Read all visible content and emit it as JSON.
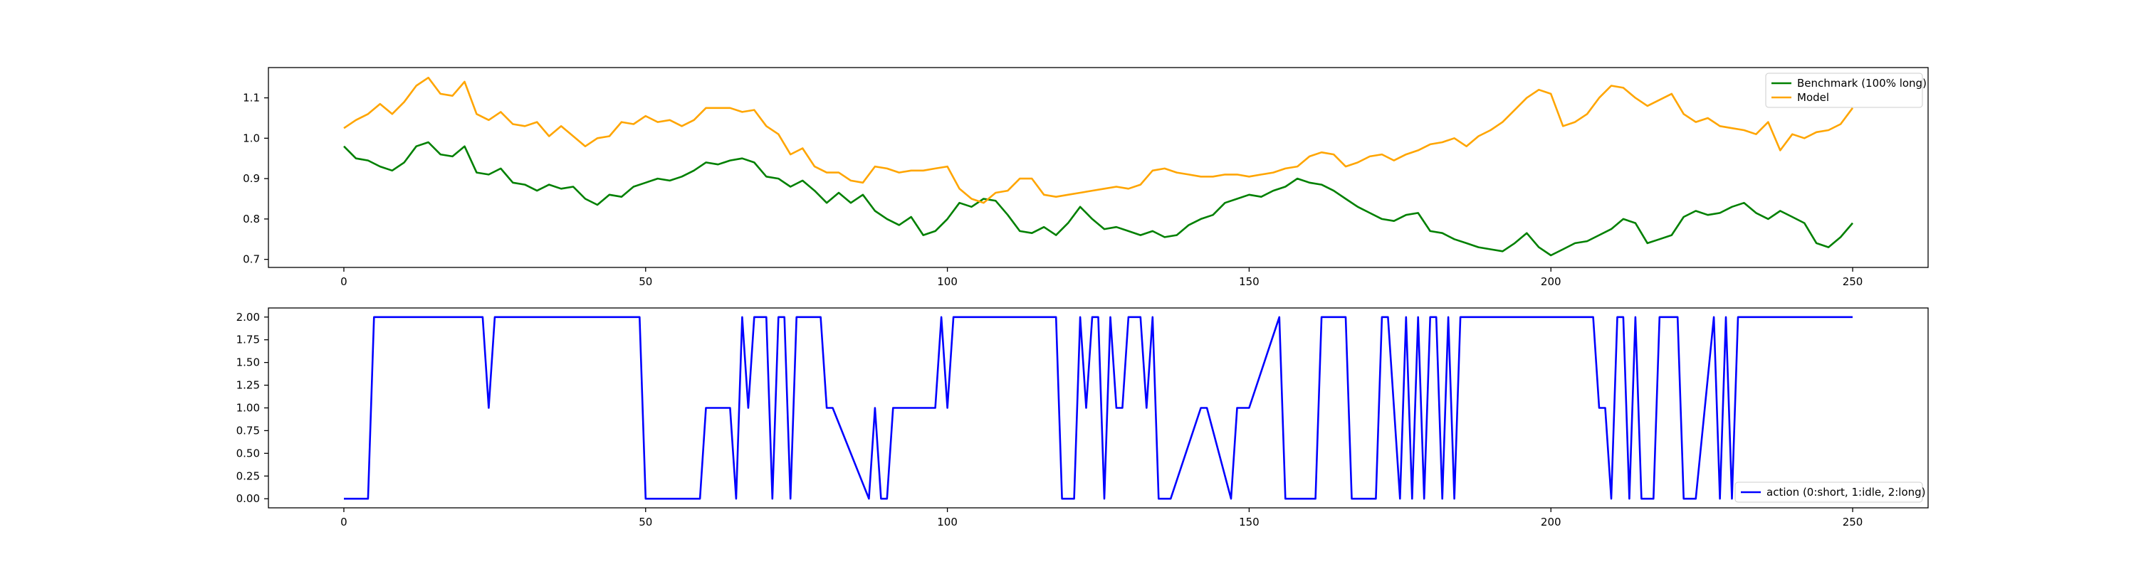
{
  "chart_data": [
    {
      "type": "line",
      "title": "",
      "xlabel": "",
      "ylabel": "",
      "xlim": [
        -12.5,
        262.5
      ],
      "ylim": [
        0.68,
        1.175
      ],
      "xticks": [
        0,
        50,
        100,
        150,
        200,
        250
      ],
      "xtick_labels": [
        "0",
        "50",
        "100",
        "150",
        "200",
        "250"
      ],
      "yticks": [
        0.7,
        0.8,
        0.9,
        1.0,
        1.1
      ],
      "ytick_labels": [
        "0.7",
        "0.8",
        "0.9",
        "1.0",
        "1.1"
      ],
      "grid": false,
      "legend_position": "top-right",
      "series": [
        {
          "name": "Benchmark (100% long)",
          "color": "#008000",
          "x": [
            0,
            2,
            4,
            6,
            8,
            10,
            12,
            14,
            16,
            18,
            20,
            22,
            24,
            26,
            28,
            30,
            32,
            34,
            36,
            38,
            40,
            42,
            44,
            46,
            48,
            50,
            52,
            54,
            56,
            58,
            60,
            62,
            64,
            66,
            68,
            70,
            72,
            74,
            76,
            78,
            80,
            82,
            84,
            86,
            88,
            90,
            92,
            94,
            96,
            98,
            100,
            102,
            104,
            106,
            108,
            110,
            112,
            114,
            116,
            118,
            120,
            122,
            124,
            126,
            128,
            130,
            132,
            134,
            136,
            138,
            140,
            142,
            144,
            146,
            148,
            150,
            152,
            154,
            156,
            158,
            160,
            162,
            164,
            166,
            168,
            170,
            172,
            174,
            176,
            178,
            180,
            182,
            184,
            186,
            188,
            190,
            192,
            194,
            196,
            198,
            200,
            202,
            204,
            206,
            208,
            210,
            212,
            214,
            216,
            218,
            220,
            222,
            224,
            226,
            228,
            230,
            232,
            234,
            236,
            238,
            240,
            242,
            244,
            246,
            248,
            250
          ],
          "values": [
            0.98,
            0.95,
            0.945,
            0.93,
            0.92,
            0.94,
            0.98,
            0.99,
            0.96,
            0.955,
            0.98,
            0.915,
            0.91,
            0.925,
            0.89,
            0.885,
            0.87,
            0.885,
            0.875,
            0.88,
            0.85,
            0.835,
            0.86,
            0.855,
            0.88,
            0.89,
            0.9,
            0.895,
            0.905,
            0.92,
            0.94,
            0.935,
            0.945,
            0.95,
            0.94,
            0.905,
            0.9,
            0.88,
            0.895,
            0.87,
            0.84,
            0.865,
            0.84,
            0.86,
            0.82,
            0.8,
            0.785,
            0.805,
            0.76,
            0.77,
            0.8,
            0.84,
            0.83,
            0.85,
            0.845,
            0.81,
            0.77,
            0.765,
            0.78,
            0.76,
            0.79,
            0.83,
            0.8,
            0.775,
            0.78,
            0.77,
            0.76,
            0.77,
            0.755,
            0.76,
            0.785,
            0.8,
            0.81,
            0.84,
            0.85,
            0.86,
            0.855,
            0.87,
            0.88,
            0.9,
            0.89,
            0.885,
            0.87,
            0.85,
            0.83,
            0.815,
            0.8,
            0.795,
            0.81,
            0.815,
            0.77,
            0.765,
            0.75,
            0.74,
            0.73,
            0.725,
            0.72,
            0.74,
            0.765,
            0.73,
            0.71,
            0.725,
            0.74,
            0.745,
            0.76,
            0.775,
            0.8,
            0.79,
            0.74,
            0.75,
            0.76,
            0.805,
            0.82,
            0.81,
            0.815,
            0.83,
            0.84,
            0.815,
            0.8,
            0.82,
            0.805,
            0.79,
            0.74,
            0.73,
            0.755,
            0.79
          ]
        },
        {
          "name": "Model",
          "color": "#ffa500",
          "x": [
            0,
            2,
            4,
            6,
            8,
            10,
            12,
            14,
            16,
            18,
            20,
            22,
            24,
            26,
            28,
            30,
            32,
            34,
            36,
            38,
            40,
            42,
            44,
            46,
            48,
            50,
            52,
            54,
            56,
            58,
            60,
            62,
            64,
            66,
            68,
            70,
            72,
            74,
            76,
            78,
            80,
            82,
            84,
            86,
            88,
            90,
            92,
            94,
            96,
            98,
            100,
            102,
            104,
            106,
            108,
            110,
            112,
            114,
            116,
            118,
            120,
            122,
            124,
            126,
            128,
            130,
            132,
            134,
            136,
            138,
            140,
            142,
            144,
            146,
            148,
            150,
            152,
            154,
            156,
            158,
            160,
            162,
            164,
            166,
            168,
            170,
            172,
            174,
            176,
            178,
            180,
            182,
            184,
            186,
            188,
            190,
            192,
            194,
            196,
            198,
            200,
            202,
            204,
            206,
            208,
            210,
            212,
            214,
            216,
            218,
            220,
            222,
            224,
            226,
            228,
            230,
            232,
            234,
            236,
            238,
            240,
            242,
            244,
            246,
            248,
            250
          ],
          "values": [
            1.025,
            1.045,
            1.06,
            1.085,
            1.06,
            1.09,
            1.13,
            1.15,
            1.11,
            1.105,
            1.14,
            1.06,
            1.045,
            1.065,
            1.035,
            1.03,
            1.04,
            1.005,
            1.03,
            1.005,
            0.98,
            1.0,
            1.005,
            1.04,
            1.035,
            1.055,
            1.04,
            1.045,
            1.03,
            1.045,
            1.075,
            1.075,
            1.075,
            1.065,
            1.07,
            1.03,
            1.01,
            0.96,
            0.975,
            0.93,
            0.915,
            0.915,
            0.895,
            0.89,
            0.93,
            0.925,
            0.915,
            0.92,
            0.92,
            0.925,
            0.93,
            0.875,
            0.85,
            0.84,
            0.865,
            0.87,
            0.9,
            0.9,
            0.86,
            0.855,
            0.86,
            0.865,
            0.87,
            0.875,
            0.88,
            0.875,
            0.885,
            0.92,
            0.925,
            0.915,
            0.91,
            0.905,
            0.905,
            0.91,
            0.91,
            0.905,
            0.91,
            0.915,
            0.925,
            0.93,
            0.955,
            0.965,
            0.96,
            0.93,
            0.94,
            0.955,
            0.96,
            0.945,
            0.96,
            0.97,
            0.985,
            0.99,
            1.0,
            0.98,
            1.005,
            1.02,
            1.04,
            1.07,
            1.1,
            1.12,
            1.11,
            1.03,
            1.04,
            1.06,
            1.1,
            1.13,
            1.125,
            1.1,
            1.08,
            1.095,
            1.11,
            1.06,
            1.04,
            1.05,
            1.03,
            1.025,
            1.02,
            1.01,
            1.04,
            0.97,
            1.01,
            1.0,
            1.015,
            1.02,
            1.035,
            1.075
          ]
        }
      ]
    },
    {
      "type": "line",
      "title": "",
      "xlabel": "",
      "ylabel": "",
      "xlim": [
        -12.5,
        262.5
      ],
      "ylim": [
        -0.1,
        2.1
      ],
      "xticks": [
        0,
        50,
        100,
        150,
        200,
        250
      ],
      "xtick_labels": [
        "0",
        "50",
        "100",
        "150",
        "200",
        "250"
      ],
      "yticks": [
        0.0,
        0.25,
        0.5,
        0.75,
        1.0,
        1.25,
        1.5,
        1.75,
        2.0
      ],
      "ytick_labels": [
        "0.00",
        "0.25",
        "0.50",
        "0.75",
        "1.00",
        "1.25",
        "1.50",
        "1.75",
        "2.00"
      ],
      "grid": false,
      "legend_position": "bottom-right",
      "series": [
        {
          "name": "action (0:short, 1:idle, 2:long)",
          "color": "#0000ff",
          "x": [
            0,
            4,
            5,
            23,
            24,
            25,
            49,
            50,
            59,
            60,
            64,
            65,
            66,
            67,
            68,
            70,
            71,
            72,
            73,
            74,
            75,
            76,
            79,
            80,
            81,
            87,
            88,
            89,
            90,
            91,
            98,
            99,
            100,
            101,
            118,
            119,
            121,
            122,
            123,
            124,
            125,
            126,
            127,
            128,
            129,
            130,
            132,
            133,
            134,
            135,
            136,
            137,
            142,
            143,
            147,
            148,
            149,
            150,
            155,
            156,
            161,
            162,
            163,
            166,
            167,
            171,
            172,
            173,
            175,
            176,
            177,
            178,
            179,
            180,
            181,
            182,
            183,
            184,
            185,
            186,
            187,
            188,
            207,
            208,
            209,
            210,
            211,
            212,
            213,
            214,
            215,
            216,
            217,
            218,
            221,
            222,
            223,
            224,
            227,
            228,
            229,
            230,
            231,
            232,
            250
          ],
          "values": [
            0,
            0,
            2,
            2,
            1,
            2,
            2,
            0,
            0,
            1,
            1,
            0,
            2,
            1,
            2,
            2,
            0,
            2,
            2,
            0,
            2,
            2,
            2,
            1,
            1,
            0,
            1,
            0,
            0,
            1,
            1,
            2,
            1,
            2,
            2,
            0,
            0,
            2,
            1,
            2,
            2,
            0,
            2,
            1,
            1,
            2,
            2,
            1,
            2,
            0,
            0,
            0,
            1,
            1,
            0,
            1,
            1,
            1,
            2,
            0,
            0,
            2,
            2,
            2,
            0,
            0,
            2,
            2,
            0,
            2,
            0,
            2,
            0,
            2,
            2,
            0,
            2,
            0,
            2,
            2,
            2,
            2,
            2,
            1,
            1,
            0,
            2,
            2,
            0,
            2,
            0,
            0,
            0,
            2,
            2,
            0,
            0,
            0,
            2,
            0,
            2,
            0,
            2,
            2,
            2
          ]
        }
      ]
    }
  ]
}
